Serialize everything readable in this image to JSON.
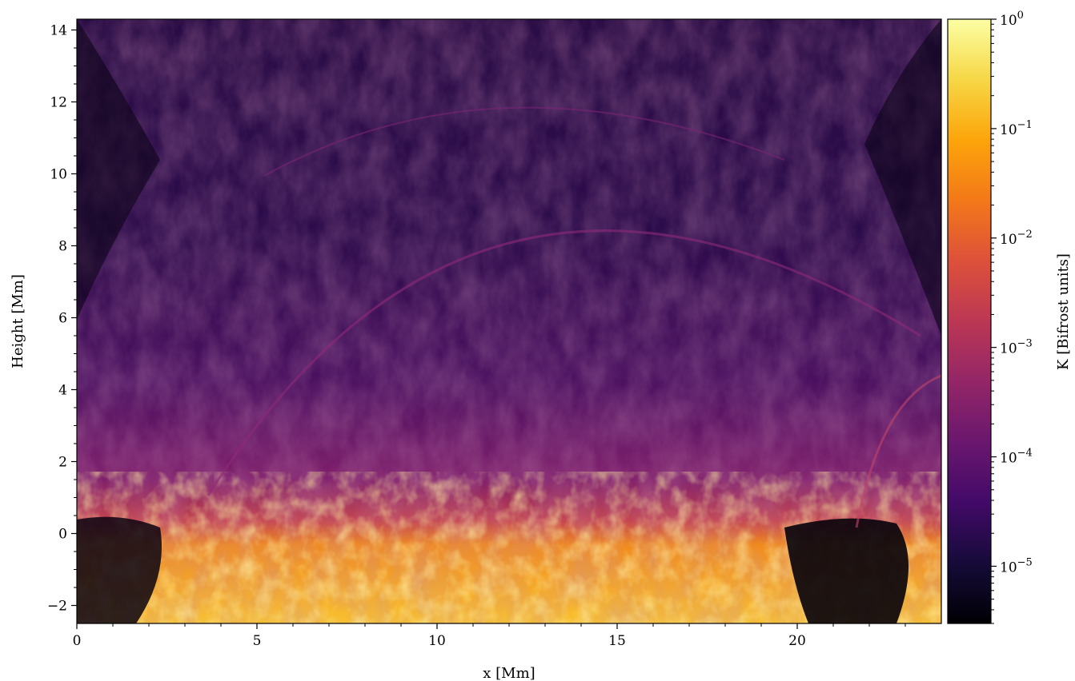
{
  "chart_data": {
    "type": "heatmap",
    "xlabel": "x [Mm]",
    "ylabel": "Height [Mm]",
    "xlim": [
      0,
      24
    ],
    "ylim": [
      -2.5,
      14.3
    ],
    "x_ticks": [
      0,
      5,
      10,
      15,
      20
    ],
    "y_ticks": [
      -2,
      0,
      2,
      4,
      6,
      8,
      10,
      12,
      14
    ],
    "x_tick_labels": [
      "0",
      "5",
      "10",
      "15",
      "20"
    ],
    "y_tick_labels": [
      "−2",
      "0",
      "2",
      "4",
      "6",
      "8",
      "10",
      "12",
      "14"
    ],
    "colorbar": {
      "label": "K [Bifrost units]",
      "scale": "log",
      "range": [
        3e-06,
        1
      ],
      "colormap": "inferno",
      "tick_values": [
        1e-05,
        0.0001,
        0.001,
        0.01,
        0.1,
        1
      ],
      "tick_labels": [
        {
          "base": "10",
          "exp": "−5"
        },
        {
          "base": "10",
          "exp": "−4"
        },
        {
          "base": "10",
          "exp": "−3"
        },
        {
          "base": "10",
          "exp": "−2"
        },
        {
          "base": "10",
          "exp": "−1"
        },
        {
          "base": "10",
          "exp": "0"
        }
      ]
    }
  }
}
